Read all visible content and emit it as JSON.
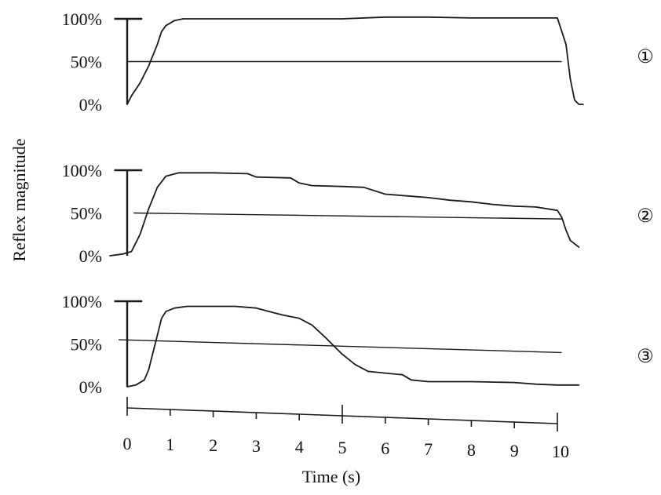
{
  "chart_data": {
    "type": "line",
    "xlabel": "Time (s)",
    "ylabel": "Reflex magnitude",
    "x_ticks": [
      "0",
      "1",
      "2",
      "3",
      "4",
      "5",
      "6",
      "7",
      "8",
      "9",
      "10"
    ],
    "xlim": [
      0,
      10.5
    ],
    "y_ticks": [
      "0%",
      "50%",
      "100%"
    ],
    "ylim": [
      0,
      100
    ],
    "grid": false,
    "legend": "none",
    "panels": [
      {
        "id": "①",
        "series": [
          {
            "x": [
              0,
              0.1,
              0.3,
              0.5,
              0.7,
              0.8,
              0.9,
              1.1,
              1.3,
              2,
              3,
              4,
              5,
              6,
              7,
              8,
              9,
              10,
              10.2,
              10.3,
              10.4,
              10.5,
              10.6
            ],
            "y": [
              0,
              10,
              25,
              45,
              70,
              85,
              92,
              98,
              100,
              100,
              100,
              100,
              100,
              102,
              102,
              101,
              101,
              101,
              70,
              30,
              5,
              0,
              0
            ]
          }
        ],
        "reference": {
          "x": [
            0,
            10.1
          ],
          "y": [
            50,
            50
          ]
        }
      },
      {
        "id": "②",
        "series": [
          {
            "x": [
              -0.4,
              -0.1,
              0.1,
              0.3,
              0.5,
              0.7,
              0.9,
              1.2,
              1.6,
              2,
              2.8,
              3,
              3.8,
              4,
              4.3,
              5,
              5.5,
              6,
              6.5,
              7,
              7.5,
              8,
              8.5,
              9,
              9.5,
              10,
              10.1,
              10.2,
              10.3,
              10.5
            ],
            "y": [
              0,
              2,
              5,
              25,
              55,
              80,
              93,
              97,
              97,
              97,
              96,
              92,
              91,
              85,
              82,
              81,
              80,
              72,
              70,
              68,
              65,
              63,
              60,
              58,
              57,
              53,
              45,
              30,
              18,
              10
            ]
          }
        ],
        "reference": {
          "x": [
            0.15,
            10.1
          ],
          "y": [
            50,
            43
          ]
        }
      },
      {
        "id": "③",
        "series": [
          {
            "x": [
              0,
              0.2,
              0.4,
              0.5,
              0.6,
              0.7,
              0.8,
              0.9,
              1.1,
              1.4,
              2,
              2.5,
              3,
              3.3,
              3.6,
              4,
              4.3,
              4.6,
              4.8,
              5,
              5.3,
              5.6,
              6,
              6.4,
              6.6,
              7,
              8,
              9,
              9.5,
              10,
              10.5
            ],
            "y": [
              0,
              2,
              8,
              20,
              40,
              60,
              80,
              88,
              92,
              94,
              94,
              94,
              92,
              88,
              84,
              80,
              72,
              58,
              48,
              38,
              26,
              18,
              16,
              14,
              8,
              6,
              6,
              5,
              3,
              2,
              2
            ]
          }
        ],
        "reference": {
          "x": [
            -0.2,
            10.1
          ],
          "y": [
            55,
            40
          ]
        }
      }
    ]
  }
}
